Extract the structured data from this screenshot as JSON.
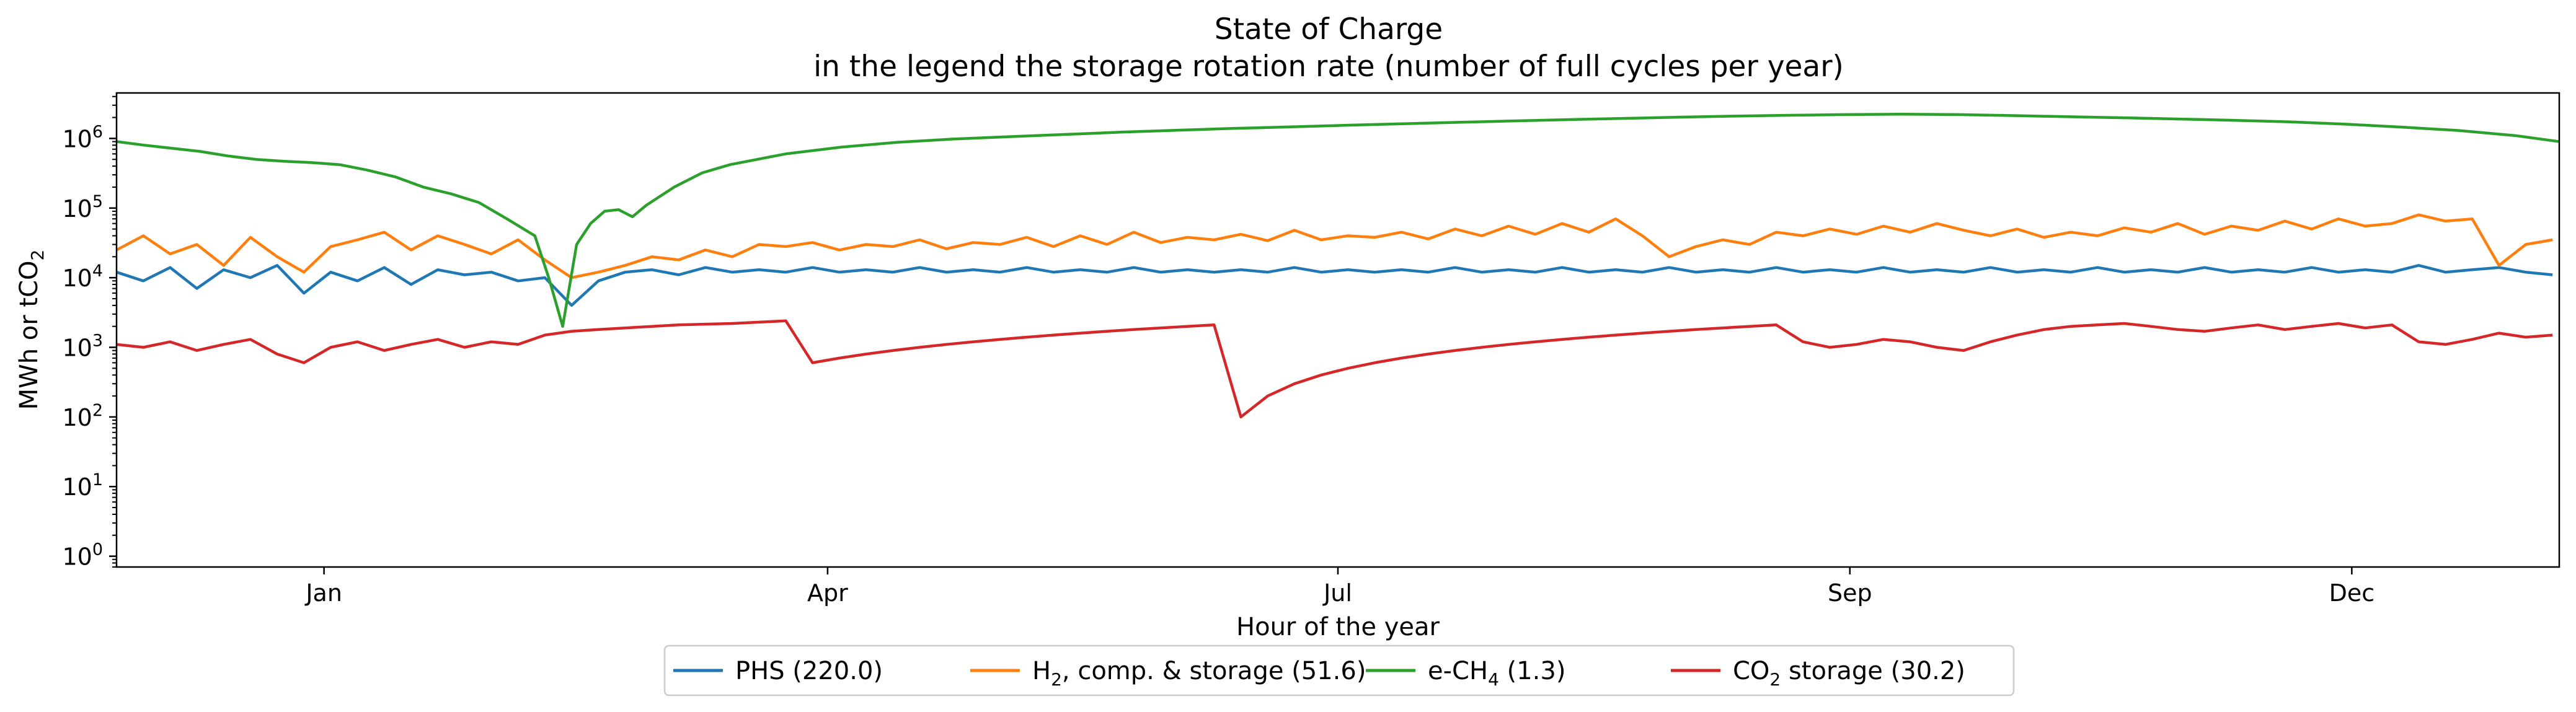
{
  "chart_data": {
    "type": "line",
    "title": "State of Charge",
    "subtitle": "in the legend the storage rotation rate (number of full cycles per year)",
    "xlabel": "Hour of the year",
    "ylabel": "MWh or tCO",
    "ylabel_sub": "2",
    "yscale": "log",
    "xlim": [
      0,
      8760
    ],
    "ylim": [
      0.7,
      4500000
    ],
    "xticks": [
      {
        "value": 744,
        "label": "Jan"
      },
      {
        "value": 2550,
        "label": "Apr"
      },
      {
        "value": 4380,
        "label": "Jul"
      },
      {
        "value": 6216,
        "label": "Sep"
      },
      {
        "value": 8016,
        "label": "Dec"
      }
    ],
    "yticks": [
      {
        "value": 1,
        "base": "10",
        "exp": "0"
      },
      {
        "value": 10,
        "base": "10",
        "exp": "1"
      },
      {
        "value": 100,
        "base": "10",
        "exp": "2"
      },
      {
        "value": 1000,
        "base": "10",
        "exp": "3"
      },
      {
        "value": 10000,
        "base": "10",
        "exp": "4"
      },
      {
        "value": 100000,
        "base": "10",
        "exp": "5"
      },
      {
        "value": 1000000,
        "base": "10",
        "exp": "6"
      }
    ],
    "grid": false,
    "legend_position": "bottom-center",
    "series": [
      {
        "legend": {
          "pre": "PHS (220.0)",
          "sub": "",
          "post": ""
        },
        "color": "#1f77b4",
        "x": [
          0,
          96,
          192,
          288,
          384,
          480,
          576,
          672,
          768,
          864,
          960,
          1056,
          1152,
          1248,
          1344,
          1440,
          1536,
          1632,
          1728,
          1824,
          1920,
          2016,
          2112,
          2208,
          2304,
          2400,
          2496,
          2592,
          2688,
          2784,
          2880,
          2976,
          3072,
          3168,
          3264,
          3360,
          3456,
          3552,
          3648,
          3744,
          3840,
          3936,
          4032,
          4128,
          4224,
          4320,
          4416,
          4512,
          4608,
          4704,
          4800,
          4896,
          4992,
          5088,
          5184,
          5280,
          5376,
          5472,
          5568,
          5664,
          5760,
          5856,
          5952,
          6048,
          6144,
          6240,
          6336,
          6432,
          6528,
          6624,
          6720,
          6816,
          6912,
          7008,
          7104,
          7200,
          7296,
          7392,
          7488,
          7584,
          7680,
          7776,
          7872,
          7968,
          8064,
          8160,
          8256,
          8352,
          8448,
          8544,
          8640,
          8736
        ],
        "y": [
          12000,
          9000,
          14000,
          7000,
          13000,
          10000,
          15000,
          6000,
          12000,
          9000,
          14000,
          8000,
          13000,
          11000,
          12000,
          9000,
          10000,
          4000,
          9000,
          12000,
          13000,
          11000,
          14000,
          12000,
          13000,
          12000,
          14000,
          12000,
          13000,
          12000,
          14000,
          12000,
          13000,
          12000,
          14000,
          12000,
          13000,
          12000,
          14000,
          12000,
          13000,
          12000,
          13000,
          12000,
          14000,
          12000,
          13000,
          12000,
          13000,
          12000,
          14000,
          12000,
          13000,
          12000,
          14000,
          12000,
          13000,
          12000,
          14000,
          12000,
          13000,
          12000,
          14000,
          12000,
          13000,
          12000,
          14000,
          12000,
          13000,
          12000,
          14000,
          12000,
          13000,
          12000,
          14000,
          12000,
          13000,
          12000,
          14000,
          12000,
          13000,
          12000,
          14000,
          12000,
          13000,
          12000,
          15000,
          12000,
          13000,
          14000,
          12000,
          11000
        ]
      },
      {
        "legend": {
          "pre": "H",
          "sub": "2",
          "post": ", comp. & storage (51.6)"
        },
        "color": "#ff7f0e",
        "x": [
          0,
          96,
          192,
          288,
          384,
          480,
          576,
          672,
          768,
          864,
          960,
          1056,
          1152,
          1248,
          1344,
          1440,
          1536,
          1632,
          1728,
          1824,
          1920,
          2016,
          2112,
          2208,
          2304,
          2400,
          2496,
          2592,
          2688,
          2784,
          2880,
          2976,
          3072,
          3168,
          3264,
          3360,
          3456,
          3552,
          3648,
          3744,
          3840,
          3936,
          4032,
          4128,
          4224,
          4320,
          4416,
          4512,
          4608,
          4704,
          4800,
          4896,
          4992,
          5088,
          5184,
          5280,
          5376,
          5472,
          5568,
          5664,
          5760,
          5856,
          5952,
          6048,
          6144,
          6240,
          6336,
          6432,
          6528,
          6624,
          6720,
          6816,
          6912,
          7008,
          7104,
          7200,
          7296,
          7392,
          7488,
          7584,
          7680,
          7776,
          7872,
          7968,
          8064,
          8160,
          8256,
          8352,
          8448,
          8544,
          8640,
          8736
        ],
        "y": [
          25000,
          40000,
          22000,
          30000,
          15000,
          38000,
          20000,
          12000,
          28000,
          35000,
          45000,
          25000,
          40000,
          30000,
          22000,
          35000,
          18000,
          10000,
          12000,
          15000,
          20000,
          18000,
          25000,
          20000,
          30000,
          28000,
          32000,
          25000,
          30000,
          28000,
          35000,
          26000,
          32000,
          30000,
          38000,
          28000,
          40000,
          30000,
          45000,
          32000,
          38000,
          35000,
          42000,
          34000,
          48000,
          35000,
          40000,
          38000,
          45000,
          36000,
          50000,
          40000,
          55000,
          42000,
          60000,
          45000,
          70000,
          40000,
          20000,
          28000,
          35000,
          30000,
          45000,
          40000,
          50000,
          42000,
          55000,
          45000,
          60000,
          48000,
          40000,
          50000,
          38000,
          45000,
          40000,
          52000,
          45000,
          60000,
          42000,
          55000,
          48000,
          65000,
          50000,
          70000,
          55000,
          60000,
          80000,
          65000,
          70000,
          15000,
          30000,
          35000
        ]
      },
      {
        "legend": {
          "pre": "e-CH",
          "sub": "4",
          "post": " (1.3)"
        },
        "color": "#2ca02c",
        "x": [
          0,
          100,
          200,
          300,
          400,
          500,
          600,
          700,
          800,
          900,
          1000,
          1100,
          1200,
          1300,
          1400,
          1500,
          1550,
          1600,
          1650,
          1700,
          1750,
          1800,
          1850,
          1900,
          2000,
          2100,
          2200,
          2400,
          2600,
          2800,
          3000,
          3200,
          3400,
          3600,
          3800,
          4000,
          4200,
          4400,
          4600,
          4800,
          5000,
          5200,
          5400,
          5600,
          5800,
          6000,
          6200,
          6400,
          6600,
          6800,
          7000,
          7200,
          7400,
          7600,
          7800,
          8000,
          8200,
          8400,
          8600,
          8760
        ],
        "y": [
          900000,
          800000,
          720000,
          650000,
          560000,
          500000,
          470000,
          450000,
          420000,
          350000,
          280000,
          200000,
          160000,
          120000,
          70000,
          40000,
          10000,
          2000,
          30000,
          60000,
          90000,
          95000,
          75000,
          110000,
          200000,
          320000,
          420000,
          600000,
          750000,
          880000,
          980000,
          1060000,
          1140000,
          1230000,
          1310000,
          1390000,
          1460000,
          1540000,
          1620000,
          1700000,
          1780000,
          1860000,
          1940000,
          2020000,
          2090000,
          2150000,
          2200000,
          2230000,
          2200000,
          2130000,
          2050000,
          1980000,
          1900000,
          1820000,
          1730000,
          1600000,
          1450000,
          1300000,
          1100000,
          900000
        ]
      },
      {
        "legend": {
          "pre": "CO",
          "sub": "2",
          "post": " storage (30.2)"
        },
        "color": "#d62728",
        "x": [
          0,
          96,
          192,
          288,
          384,
          480,
          576,
          672,
          768,
          864,
          960,
          1056,
          1152,
          1248,
          1344,
          1440,
          1536,
          1632,
          1728,
          1824,
          1920,
          2016,
          2112,
          2208,
          2304,
          2400,
          2496,
          2592,
          2688,
          2784,
          2880,
          2976,
          3072,
          3168,
          3264,
          3360,
          3456,
          3552,
          3648,
          3744,
          3840,
          3936,
          4032,
          4128,
          4224,
          4320,
          4416,
          4512,
          4608,
          4704,
          4800,
          4896,
          4992,
          5088,
          5184,
          5280,
          5376,
          5472,
          5568,
          5664,
          5760,
          5856,
          5952,
          6048,
          6144,
          6240,
          6336,
          6432,
          6528,
          6624,
          6720,
          6816,
          6912,
          7008,
          7104,
          7200,
          7296,
          7392,
          7488,
          7584,
          7680,
          7776,
          7872,
          7968,
          8064,
          8160,
          8256,
          8352,
          8448,
          8544,
          8640,
          8736
        ],
        "y": [
          1100,
          1000,
          1200,
          900,
          1100,
          1300,
          800,
          600,
          1000,
          1200,
          900,
          1100,
          1300,
          1000,
          1200,
          1100,
          1500,
          1700,
          1800,
          1900,
          2000,
          2100,
          2150,
          2200,
          2300,
          2400,
          600,
          700,
          800,
          900,
          1000,
          1100,
          1200,
          1300,
          1400,
          1500,
          1600,
          1700,
          1800,
          1900,
          2000,
          2100,
          100,
          200,
          300,
          400,
          500,
          600,
          700,
          800,
          900,
          1000,
          1100,
          1200,
          1300,
          1400,
          1500,
          1600,
          1700,
          1800,
          1900,
          2000,
          2100,
          1200,
          1000,
          1100,
          1300,
          1200,
          1000,
          900,
          1200,
          1500,
          1800,
          2000,
          2100,
          2200,
          2000,
          1800,
          1700,
          1900,
          2100,
          1800,
          2000,
          2200,
          1900,
          2100,
          1200,
          1100,
          1300,
          1600,
          1400,
          1500
        ]
      }
    ]
  }
}
